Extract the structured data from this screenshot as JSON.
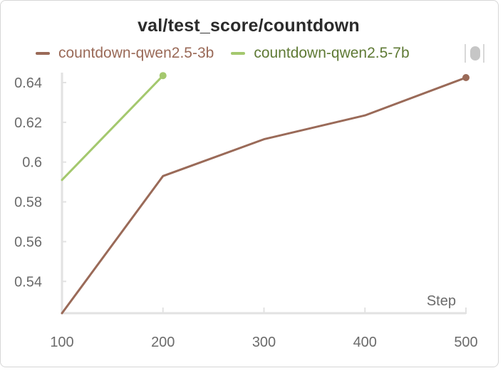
{
  "chart_data": {
    "type": "line",
    "title": "val/test_score/countdown",
    "xlabel": "Step",
    "ylabel": "",
    "xlim": [
      100,
      500
    ],
    "ylim": [
      0.524,
      0.645
    ],
    "x_ticks": [
      100,
      200,
      300,
      400,
      500
    ],
    "y_ticks": [
      0.54,
      0.56,
      0.58,
      0.6,
      0.62,
      0.64
    ],
    "x_tick_labels": [
      "100",
      "200",
      "300",
      "400",
      "500"
    ],
    "y_tick_labels": [
      "0.54",
      "0.56",
      "0.58",
      "0.6",
      "0.62",
      "0.64"
    ],
    "grid": false,
    "legend_position": "top-left",
    "series": [
      {
        "name": "countdown-qwen2.5-3b",
        "color": "#9a6a58",
        "legend_text_color": "#9a6a58",
        "x": [
          100,
          200,
          300,
          400,
          500
        ],
        "y": [
          0.524,
          0.593,
          0.6115,
          0.6235,
          0.6425
        ]
      },
      {
        "name": "countdown-qwen2.5-7b",
        "color": "#a4c86e",
        "legend_text_color": "#5f7a35",
        "x": [
          100,
          200
        ],
        "y": [
          0.591,
          0.6435
        ]
      }
    ]
  }
}
